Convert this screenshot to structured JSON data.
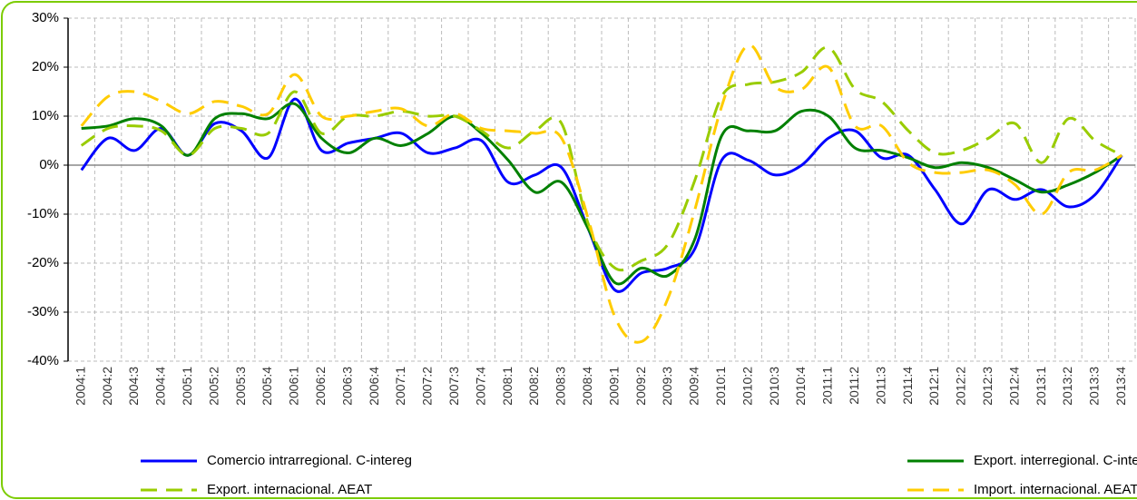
{
  "chart_data": {
    "type": "line",
    "categories": [
      "2004:1",
      "2004:2",
      "2004:3",
      "2004:4",
      "2005:1",
      "2005:2",
      "2005:3",
      "2005:4",
      "2006:1",
      "2006:2",
      "2006:3",
      "2006:4",
      "2007:1",
      "2007:2",
      "2007:3",
      "2007:4",
      "2008:1",
      "2008:2",
      "2008:3",
      "2008:4",
      "2009:1",
      "2009:2",
      "2009:3",
      "2009:4",
      "2010:1",
      "2010:2",
      "2010:3",
      "2010:4",
      "2011:1",
      "2011:2",
      "2011:3",
      "2011:4",
      "2012:1",
      "2012:2",
      "2012:3",
      "2012:4",
      "2013:1",
      "2013:2",
      "2013:3",
      "2013:4"
    ],
    "series": [
      {
        "name": "Comercio intrarregional. C-intereg",
        "color": "#0000ff",
        "style": "solid",
        "values": [
          -1,
          5.5,
          3,
          7.5,
          2,
          8.5,
          7,
          1.5,
          13.5,
          3,
          4.5,
          5.5,
          6.5,
          2.5,
          3.5,
          5,
          -3.5,
          -2,
          -0.5,
          -13,
          -25.5,
          -22,
          -21,
          -17,
          1,
          1,
          -2,
          0,
          5.5,
          7,
          1.5,
          2,
          -5,
          -12,
          -5,
          -7,
          -5,
          -8.5,
          -6,
          2
        ]
      },
      {
        "name": "Export. interregional. C-intereg",
        "color": "#008000",
        "style": "solid",
        "values": [
          7.5,
          8,
          9.5,
          8,
          2,
          9.5,
          10.5,
          9.5,
          12.5,
          5.5,
          2.5,
          5.5,
          4,
          6.5,
          10,
          6.5,
          1,
          -5.5,
          -3.5,
          -13,
          -24,
          -21,
          -22.5,
          -15,
          6,
          7,
          7,
          11,
          10,
          3.5,
          3,
          1.5,
          -0.5,
          0.5,
          -0.5,
          -3,
          -5.5,
          -4,
          -1.5,
          2
        ]
      },
      {
        "name": "Export. internacional. AEAT",
        "color": "#99cc00",
        "style": "dashed",
        "values": [
          4,
          7.5,
          8,
          7,
          2,
          7.5,
          7.5,
          6.5,
          15,
          6.5,
          10,
          10,
          11,
          10,
          10,
          7,
          3.5,
          7,
          8.5,
          -12,
          -21,
          -19.5,
          -16,
          -3,
          14,
          16.5,
          17,
          19,
          24,
          15.5,
          13,
          7,
          2.5,
          3,
          5.5,
          8.5,
          0.5,
          9.5,
          5,
          2
        ]
      },
      {
        "name": "Import. internacional. AEAT",
        "color": "#ffcc00",
        "style": "dashed",
        "values": [
          8,
          14,
          15,
          13,
          10.5,
          13,
          12,
          10.5,
          18.5,
          10,
          10,
          11,
          11.5,
          8,
          10.5,
          7.5,
          7,
          6.5,
          5.5,
          -11,
          -31,
          -36,
          -27,
          -9,
          12,
          24.5,
          16,
          15.5,
          20,
          8,
          8,
          0.5,
          -1.5,
          -1.5,
          -1,
          -4,
          -10,
          -1.5,
          -1,
          2
        ]
      }
    ],
    "ylim": [
      -40,
      30
    ],
    "yticks": [
      {
        "value": -40,
        "label": "-40%"
      },
      {
        "value": -30,
        "label": "-30%"
      },
      {
        "value": -20,
        "label": "-20%"
      },
      {
        "value": -10,
        "label": "-10%"
      },
      {
        "value": 0,
        "label": "0%"
      },
      {
        "value": 10,
        "label": "10%"
      },
      {
        "value": 20,
        "label": "20%"
      },
      {
        "value": 30,
        "label": "30%"
      }
    ],
    "grid": true,
    "smooth": true,
    "legend": "bottom"
  }
}
